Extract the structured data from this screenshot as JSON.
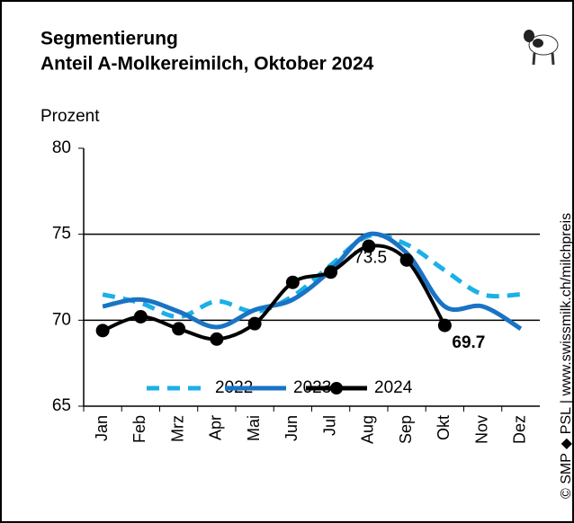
{
  "chart_data": {
    "type": "line",
    "title": "Segmentierung",
    "subtitle": "Anteil A-Molkereimilch, Oktober 2024",
    "y_label": "Prozent",
    "source": "© SMP ◆ PSL | www.swissmilk.ch/milchpreis",
    "categories": [
      "Jan",
      "Feb",
      "Mrz",
      "Apr",
      "Mai",
      "Jun",
      "Jul",
      "Aug",
      "Sep",
      "Okt",
      "Nov",
      "Dez"
    ],
    "series": [
      {
        "name": "2022",
        "color": "#1ab0e8",
        "dashed": true,
        "values": [
          71.5,
          71.0,
          70.2,
          71.1,
          70.5,
          71.4,
          73.2,
          74.9,
          74.4,
          72.9,
          71.5,
          71.5
        ]
      },
      {
        "name": "2023",
        "color": "#1a73c4",
        "values": [
          70.8,
          71.2,
          70.5,
          69.6,
          70.6,
          71.2,
          72.9,
          75.0,
          73.9,
          70.8,
          70.8,
          69.5
        ]
      },
      {
        "name": "2024",
        "color": "#000000",
        "markers": true,
        "values": [
          69.4,
          70.2,
          69.5,
          68.9,
          69.8,
          72.2,
          72.8,
          74.3,
          73.5,
          69.7,
          null,
          null
        ]
      }
    ],
    "ylim": [
      65,
      80
    ],
    "yticks": [
      65,
      70,
      75,
      80
    ],
    "grid": true,
    "legend": "bottom"
  }
}
